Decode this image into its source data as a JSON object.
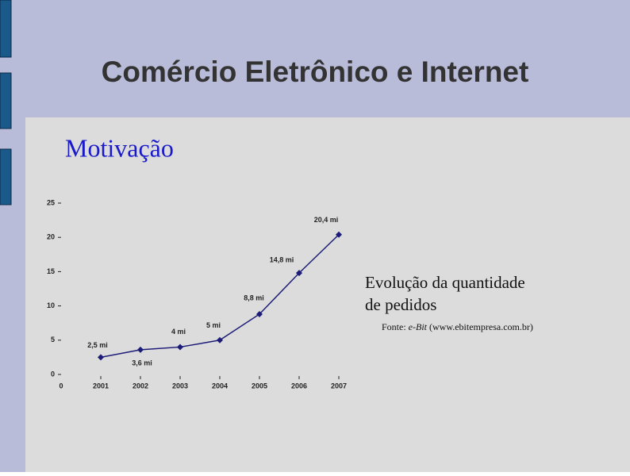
{
  "slide": {
    "title": "Comércio Eletrônico e Internet",
    "subtitle": "Motivação",
    "caption": [
      "Evolução da quantidade",
      "de pedidos"
    ],
    "source": {
      "prefix": "Fonte: ",
      "italic": "e-Bit",
      "suffix": " (www.ebitempresa.com.br)"
    }
  },
  "chart_data": {
    "type": "line",
    "x": [
      2001,
      2002,
      2003,
      2004,
      2005,
      2006,
      2007
    ],
    "series": [
      {
        "color": "#1c1c78",
        "values": [
          2.5,
          3.6,
          4,
          5,
          8.8,
          14.8,
          20.4
        ],
        "value_labels": [
          "2,5 mi",
          "3,6 mi",
          "4 mi",
          "5 mi",
          "8,8 mi",
          "14,8 mi",
          "20,4 mi"
        ]
      }
    ],
    "xlim": [
      2000,
      2007
    ],
    "xticks": [
      {
        "value": 2000,
        "label": "0"
      },
      2001,
      2002,
      2003,
      2004,
      2005,
      2006,
      2007
    ],
    "ylim": [
      0,
      25
    ],
    "yticks": [
      0,
      5,
      10,
      15,
      20,
      25
    ],
    "grid": false
  }
}
